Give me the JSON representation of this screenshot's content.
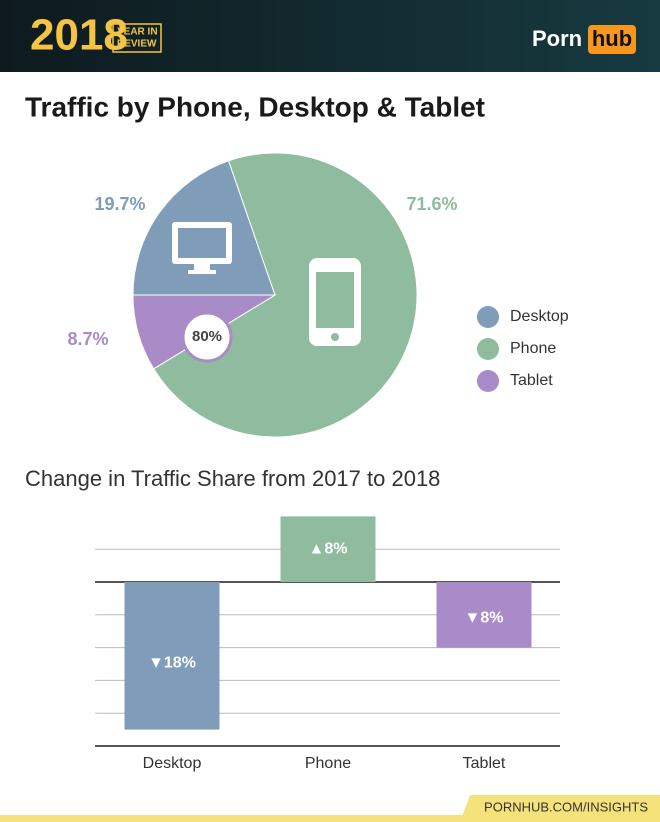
{
  "header": {
    "year": "2018",
    "badge": [
      "YEAR IN",
      "REVIEW"
    ],
    "logo": [
      "Porn",
      "hub"
    ]
  },
  "title": "Traffic by Phone, Desktop & Tablet",
  "chart_data": [
    {
      "type": "pie",
      "categories": [
        "Desktop",
        "Phone",
        "Tablet"
      ],
      "values": [
        19.7,
        71.6,
        8.7
      ],
      "value_labels": [
        "19.7%",
        "71.6%",
        "8.7%"
      ],
      "colors": [
        "#7f9db9",
        "#8fbc9f",
        "#a98bc7"
      ],
      "annotation": "80%",
      "legend": "right"
    },
    {
      "type": "bar",
      "title": "Change in Traffic Share from 2017 to 2018",
      "categories": [
        "Desktop",
        "Phone",
        "Tablet"
      ],
      "values": [
        -18,
        8,
        -8
      ],
      "value_labels": [
        "▼18%",
        "▲8%",
        "▼8%"
      ],
      "colors": [
        "#7f9db9",
        "#8fbc9f",
        "#a98bc7"
      ],
      "ylim": [
        -20,
        8
      ],
      "yticks": [
        -20,
        -16,
        -12,
        -8,
        -4,
        0,
        4
      ],
      "grid": true
    }
  ],
  "footer": "PORNHUB.COM/INSIGHTS"
}
